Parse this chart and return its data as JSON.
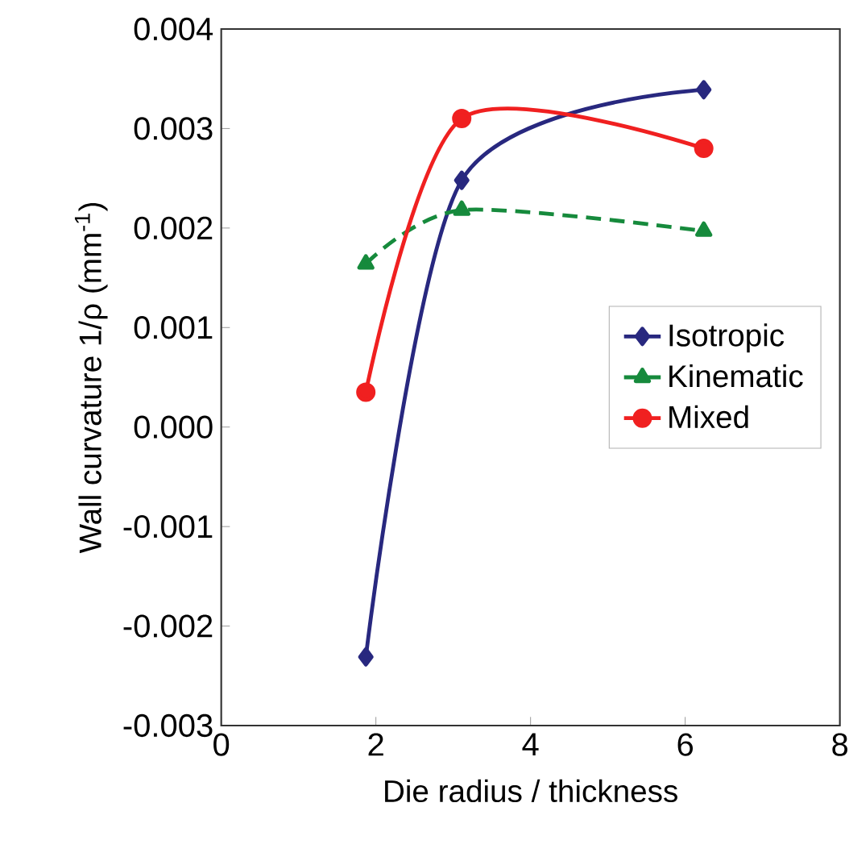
{
  "chart_data": {
    "type": "line",
    "xlabel": "Die radius / thickness",
    "ylabel": "Wall curvature  1/ρ  (mm$^{-1}$)",
    "xlim": [
      0,
      8
    ],
    "xticks": [
      0,
      2,
      4,
      6,
      8
    ],
    "ylim": [
      -0.003,
      0.004
    ],
    "yticks": [
      -0.003,
      -0.002,
      -0.001,
      {
        "value": 0,
        "label": "0.000"
      },
      0.001,
      0.002,
      0.003,
      0.004
    ],
    "legend": "right",
    "grid": false,
    "series": [
      {
        "name": "Isotropic",
        "color": "#28287f",
        "marker": "diamond",
        "line_style": "solid",
        "x": [
          1.87,
          3.11,
          6.24
        ],
        "values": [
          -0.00231,
          0.00248,
          0.00339
        ]
      },
      {
        "name": "Kinematic",
        "color": "#168a3c",
        "marker": "triangle",
        "line_style": "dashed",
        "x": [
          1.87,
          3.11,
          6.24
        ],
        "values": [
          0.00164,
          0.00218,
          0.00197
        ]
      },
      {
        "name": "Mixed",
        "color": "#f02020",
        "marker": "circle",
        "line_style": "solid",
        "x": [
          1.87,
          3.11,
          6.24
        ],
        "values": [
          0.00035,
          0.0031,
          0.0028
        ]
      }
    ]
  }
}
